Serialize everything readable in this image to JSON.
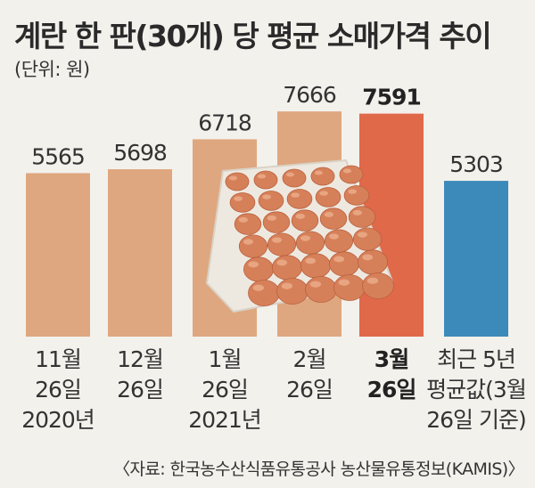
{
  "colors": {
    "background": "#f3f1ec",
    "bar_default": "#dfa77f",
    "bar_highlight": "#e0694a",
    "bar_average": "#3c8ab9",
    "egg": "#d6805a",
    "tray": "#eee9e0"
  },
  "chart_data": {
    "type": "bar",
    "title": "계란 한 판(30개) 당 평균 소매가격 추이",
    "unit_label": "(단위: 원)",
    "source": "〈자료: 한국농수산식품유통공사 농산물유통정보(KAMIS)〉",
    "ylim": [
      0,
      7700
    ],
    "grid": false,
    "legend": "none",
    "categories": [
      [
        "11월",
        "26일",
        "2020년"
      ],
      [
        "12월",
        "26일"
      ],
      [
        "1월",
        "26일",
        "2021년"
      ],
      [
        "2월",
        "26일"
      ],
      [
        "3월",
        "26일"
      ],
      [
        "최근 5년",
        "평균값(3월",
        "26일 기준)"
      ]
    ],
    "values": [
      5565,
      5698,
      6718,
      7666,
      7591,
      5303
    ],
    "value_labels": [
      "5565",
      "5698",
      "6718",
      "7666",
      "7591",
      "5303"
    ],
    "highlight_index": 4,
    "average_index": 5,
    "image_icon": "egg-tray-photo"
  }
}
